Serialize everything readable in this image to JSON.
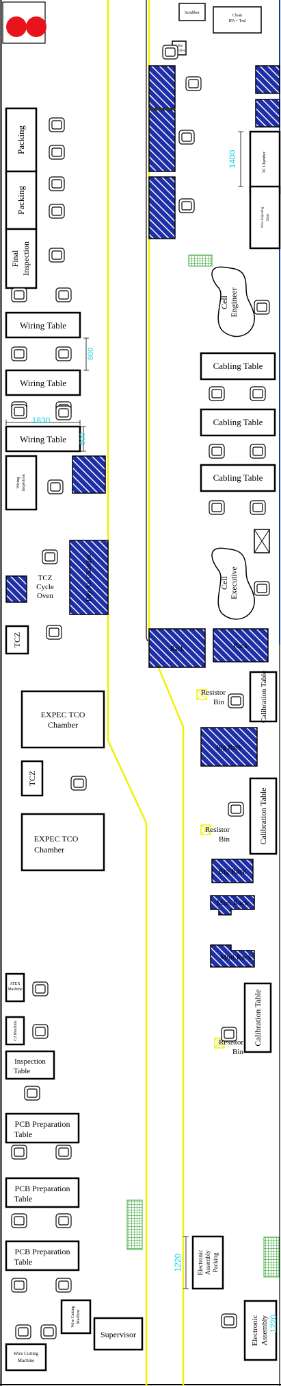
{
  "colors": {
    "walkway": "#f2f000",
    "equipment": "#1e2fa8",
    "dimension": "#19d3e6",
    "rack": "#3ba83b",
    "indicator": "#e8141c"
  },
  "top": {
    "scrubber": "Scrubber",
    "clean_label": "Clean",
    "clean_sub": "IPA + Tml",
    "bin_trolley_1": "Bin",
    "bin_trolley_2": "Trolley"
  },
  "left": {
    "packing_1": "Packing",
    "packing_2": "Packing",
    "final_inspection_1": "Final",
    "final_inspection_2": "Inspection",
    "wiring_table_1": "Wiring Table",
    "wiring_table_2": "Wiring Table",
    "wiring_table_3": "Wiring Table",
    "wiring_inspection_1": "Wiring",
    "wiring_inspection_2": "Inspection",
    "dry_air_chamber": "Dry Air Chamber",
    "tcz_oven_1": "TCZ",
    "tcz_oven_2": "Cycle",
    "tcz_oven_3": "Oven",
    "tcz_1": "TCZ",
    "expec_1_a": "EXPEC TCO",
    "expec_1_b": "Chamber",
    "tcz_2": "TCZ",
    "expec_2_a": "EXPEC TCO",
    "expec_2_b": "Chamber",
    "atex_1": "ATEX",
    "atex_2": "Machine",
    "c2_1": "C2 Machine",
    "inspection_table_1": "Inspection",
    "inspection_table_2": "Table",
    "pcb_1_a": "PCB Preparation",
    "pcb_1_b": "Table",
    "pcb_2_a": "PCB Preparation",
    "pcb_2_b": "Table",
    "pcb_3_a": "PCB Preparation",
    "pcb_3_b": "Table",
    "wire_cutting_small_1": "Wire Cutting",
    "wire_cutting_small_2": "Machine",
    "wire_cutting_1": "Wire Cutting",
    "wire_cutting_2": "Machine",
    "supervisor": "Supervisor"
  },
  "right": {
    "tc_chamber": "TC Chamber",
    "wire_adjusting_1": "Wire Adjusting",
    "wire_adjusting_2": "Table",
    "cell_engineer_1": "Cell",
    "cell_engineer_2": "Engineer",
    "cabling_table_1": "Cabling Table",
    "cabling_table_2": "Cabling Table",
    "cabling_table_3": "Cabling Table",
    "cell_executive_1": "Cell",
    "cell_executive_2": "Executive",
    "rack_1": "Rack",
    "rack_2": "Rack",
    "resistor_bin_1a": "Resistor",
    "resistor_bin_1b": "Bin",
    "resistor_bin_2a": "Resistor",
    "resistor_bin_2b": "Bin",
    "resistor_bin_3a": "Resistor",
    "resistor_bin_3b": "Bin",
    "calibration_table_1": "Calibration Table",
    "calibration_table_2": "Calibration Table",
    "calibration_table_3": "Calibration Table",
    "big_rack_main": "Big Rack",
    "big_rack": "Big Rack",
    "mini_rack_1": "Mini Rack",
    "mini_rack_2": "Mini Rack",
    "electronic_packing_1": "Electronic",
    "electronic_packing_2": "Assembly",
    "electronic_packing_3": "Packing",
    "electronic_assembly_1": "Electronic",
    "electronic_assembly_2": "Assembly"
  },
  "dimensions": {
    "d1400": "1400",
    "d800": "800",
    "d1830": "1830",
    "d600": "600",
    "d1220": "1220",
    "d1220b": "1220"
  }
}
